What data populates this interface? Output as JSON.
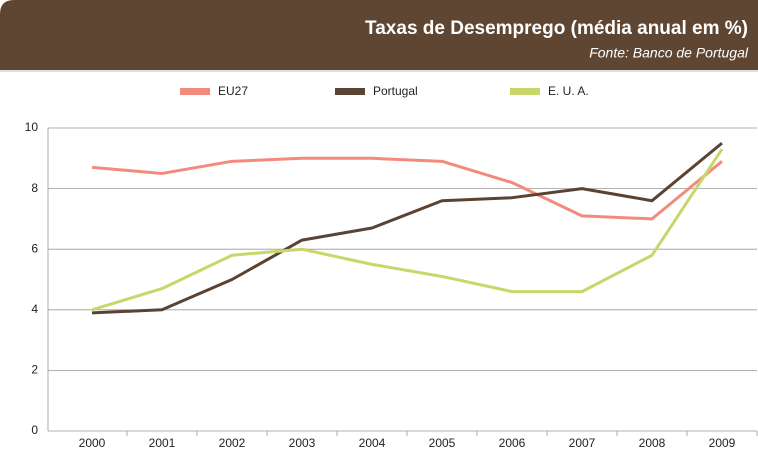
{
  "chart_data": {
    "type": "line",
    "title": "Taxas de Desemprego (média anual em %)",
    "subtitle": "Fonte: Banco de Portugal",
    "categories": [
      "2000",
      "2001",
      "2002",
      "2003",
      "2004",
      "2005",
      "2006",
      "2007",
      "2008",
      "2009"
    ],
    "series": [
      {
        "name": "EU27",
        "color": "#f28b7d",
        "values": [
          8.7,
          8.5,
          8.9,
          9.0,
          9.0,
          8.9,
          8.2,
          7.1,
          7.0,
          8.9
        ]
      },
      {
        "name": "Portugal",
        "color": "#5a4333",
        "values": [
          3.9,
          4.0,
          5.0,
          6.3,
          6.7,
          7.6,
          7.7,
          8.0,
          7.6,
          9.5
        ]
      },
      {
        "name": "E. U. A.",
        "color": "#c9d66a",
        "values": [
          4.0,
          4.7,
          5.8,
          6.0,
          5.5,
          5.1,
          4.6,
          4.6,
          5.8,
          9.3
        ]
      }
    ],
    "ylim": [
      0,
      10
    ],
    "yticks": [
      0,
      2,
      4,
      6,
      8,
      10
    ],
    "grid": true,
    "legend": "top"
  }
}
